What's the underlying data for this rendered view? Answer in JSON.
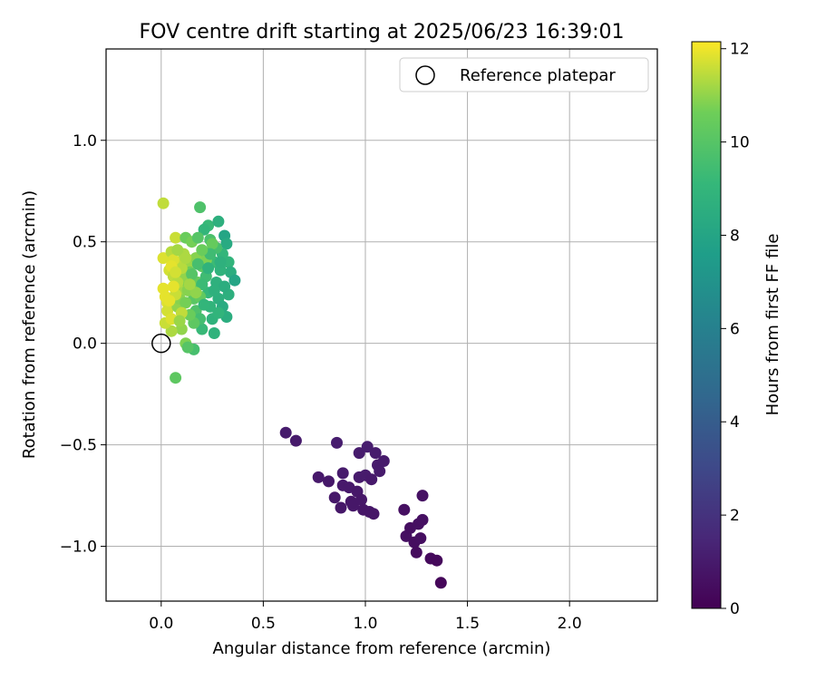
{
  "chart_data": {
    "type": "scatter",
    "title": "FOV centre drift starting at 2025/06/23 16:39:01",
    "xlabel": "Angular distance from reference (arcmin)",
    "ylabel": "Rotation from reference (arcmin)",
    "xlim": [
      -0.27,
      2.43
    ],
    "ylim": [
      -1.27,
      1.45
    ],
    "x_ticks": [
      0.0,
      0.5,
      1.0,
      1.5,
      2.0
    ],
    "x_tick_labels": [
      "0.0",
      "0.5",
      "1.0",
      "1.5",
      "2.0"
    ],
    "y_ticks": [
      -1.0,
      -0.5,
      0.0,
      0.5,
      1.0
    ],
    "y_tick_labels": [
      "−1.0",
      "−0.5",
      "0.0",
      "0.5",
      "1.0"
    ],
    "grid": true,
    "legend": {
      "position": "top-right",
      "entries": [
        "Reference platepar"
      ]
    },
    "colorbar": {
      "label": "Hours from first FF file",
      "range": [
        0,
        12.15
      ],
      "ticks": [
        0,
        2,
        4,
        6,
        8,
        10,
        12
      ],
      "tick_labels": [
        "0",
        "2",
        "4",
        "6",
        "8",
        "10",
        "12"
      ],
      "colormap": "viridis"
    },
    "reference_point": {
      "x": 0.0,
      "y": 0.0
    },
    "series": [
      {
        "points": [
          [
            0.61,
            -0.44,
            1.05
          ],
          [
            0.66,
            -0.48,
            1.0
          ],
          [
            0.77,
            -0.66,
            0.95
          ],
          [
            0.82,
            -0.68,
            0.9
          ],
          [
            0.86,
            -0.49,
            1.1
          ],
          [
            0.85,
            -0.76,
            0.9
          ],
          [
            0.88,
            -0.81,
            0.85
          ],
          [
            0.89,
            -0.64,
            1.0
          ],
          [
            0.89,
            -0.7,
            0.95
          ],
          [
            0.92,
            -0.71,
            0.95
          ],
          [
            0.93,
            -0.78,
            0.8
          ],
          [
            0.94,
            -0.8,
            0.85
          ],
          [
            0.96,
            -0.73,
            0.9
          ],
          [
            0.97,
            -0.66,
            1.0
          ],
          [
            0.97,
            -0.54,
            1.05
          ],
          [
            0.98,
            -0.77,
            0.85
          ],
          [
            0.99,
            -0.82,
            0.8
          ],
          [
            1.0,
            -0.65,
            1.0
          ],
          [
            1.01,
            -0.51,
            1.1
          ],
          [
            1.02,
            -0.83,
            0.8
          ],
          [
            1.03,
            -0.67,
            0.95
          ],
          [
            1.04,
            -0.84,
            0.8
          ],
          [
            1.05,
            -0.54,
            1.05
          ],
          [
            1.06,
            -0.6,
            1.0
          ],
          [
            1.07,
            -0.63,
            1.0
          ],
          [
            1.09,
            -0.58,
            1.0
          ],
          [
            1.19,
            -0.82,
            0.6
          ],
          [
            1.2,
            -0.95,
            0.55
          ],
          [
            1.22,
            -0.91,
            0.5
          ],
          [
            1.24,
            -0.98,
            0.45
          ],
          [
            1.25,
            -1.03,
            0.4
          ],
          [
            1.26,
            -0.89,
            0.55
          ],
          [
            1.27,
            -0.96,
            0.5
          ],
          [
            1.28,
            -0.75,
            0.65
          ],
          [
            1.28,
            -0.87,
            0.6
          ],
          [
            1.32,
            -1.06,
            0.35
          ],
          [
            1.35,
            -1.07,
            0.3
          ],
          [
            1.37,
            -1.18,
            0.2
          ],
          [
            0.01,
            0.69,
            11.5
          ],
          [
            0.07,
            -0.17,
            10.2
          ],
          [
            0.19,
            0.67,
            9.8
          ],
          [
            0.23,
            0.58,
            9.2
          ],
          [
            0.28,
            0.6,
            8.6
          ],
          [
            0.21,
            0.56,
            9.0
          ],
          [
            0.31,
            0.53,
            8.0
          ],
          [
            0.32,
            0.49,
            8.3
          ],
          [
            0.33,
            0.4,
            8.9
          ],
          [
            0.34,
            0.35,
            8.5
          ],
          [
            0.36,
            0.31,
            8.0
          ],
          [
            0.33,
            0.24,
            8.6
          ],
          [
            0.32,
            0.13,
            8.5
          ],
          [
            0.26,
            0.05,
            8.8
          ],
          [
            0.2,
            0.07,
            9.2
          ],
          [
            0.16,
            -0.03,
            9.6
          ],
          [
            0.12,
            0.0,
            10.8
          ],
          [
            0.13,
            -0.02,
            10.0
          ],
          [
            0.1,
            0.07,
            11.0
          ],
          [
            0.05,
            0.06,
            11.3
          ],
          [
            0.02,
            0.1,
            11.6
          ],
          [
            0.03,
            0.2,
            11.8
          ],
          [
            0.02,
            0.23,
            11.9
          ],
          [
            0.01,
            0.27,
            11.9
          ],
          [
            0.01,
            0.42,
            11.8
          ],
          [
            0.05,
            0.45,
            11.4
          ],
          [
            0.07,
            0.52,
            11.6
          ],
          [
            0.12,
            0.52,
            10.5
          ],
          [
            0.15,
            0.5,
            10.7
          ],
          [
            0.18,
            0.52,
            10.0
          ],
          [
            0.24,
            0.51,
            9.7
          ],
          [
            0.04,
            0.36,
            11.7
          ],
          [
            0.06,
            0.33,
            11.5
          ],
          [
            0.03,
            0.16,
            11.7
          ],
          [
            0.05,
            0.12,
            11.8
          ],
          [
            0.08,
            0.18,
            11.0
          ],
          [
            0.09,
            0.22,
            10.9
          ],
          [
            0.1,
            0.27,
            11.2
          ],
          [
            0.12,
            0.31,
            10.8
          ],
          [
            0.13,
            0.39,
            11.1
          ],
          [
            0.11,
            0.44,
            11.3
          ],
          [
            0.09,
            0.4,
            11.5
          ],
          [
            0.14,
            0.35,
            10.6
          ],
          [
            0.15,
            0.28,
            10.3
          ],
          [
            0.16,
            0.22,
            10.1
          ],
          [
            0.17,
            0.16,
            9.8
          ],
          [
            0.19,
            0.12,
            9.5
          ],
          [
            0.18,
            0.3,
            10.4
          ],
          [
            0.2,
            0.38,
            10.2
          ],
          [
            0.21,
            0.45,
            9.9
          ],
          [
            0.22,
            0.33,
            9.4
          ],
          [
            0.23,
            0.25,
            9.1
          ],
          [
            0.24,
            0.18,
            8.9
          ],
          [
            0.25,
            0.12,
            8.8
          ],
          [
            0.26,
            0.4,
            9.3
          ],
          [
            0.27,
            0.3,
            8.7
          ],
          [
            0.28,
            0.22,
            8.6
          ],
          [
            0.29,
            0.36,
            8.8
          ],
          [
            0.3,
            0.44,
            9.0
          ],
          [
            0.3,
            0.18,
            8.4
          ],
          [
            0.31,
            0.28,
            8.5
          ],
          [
            0.27,
            0.47,
            9.6
          ],
          [
            0.25,
            0.49,
            10.4
          ],
          [
            0.22,
            0.41,
            10.8
          ],
          [
            0.19,
            0.23,
            10.3
          ],
          [
            0.17,
            0.42,
            10.9
          ],
          [
            0.16,
            0.1,
            10.2
          ],
          [
            0.14,
            0.14,
            10.5
          ],
          [
            0.12,
            0.2,
            10.7
          ],
          [
            0.11,
            0.33,
            11.0
          ],
          [
            0.08,
            0.3,
            11.4
          ],
          [
            0.07,
            0.24,
            11.6
          ],
          [
            0.06,
            0.28,
            11.9
          ],
          [
            0.04,
            0.21,
            11.9
          ],
          [
            0.06,
            0.41,
            11.8
          ],
          [
            0.08,
            0.46,
            11.2
          ],
          [
            0.1,
            0.37,
            11.4
          ],
          [
            0.13,
            0.26,
            10.9
          ],
          [
            0.15,
            0.34,
            10.0
          ],
          [
            0.18,
            0.39,
            9.6
          ],
          [
            0.2,
            0.29,
            9.3
          ],
          [
            0.21,
            0.19,
            9.0
          ],
          [
            0.23,
            0.37,
            8.8
          ],
          [
            0.24,
            0.44,
            9.4
          ],
          [
            0.26,
            0.26,
            8.7
          ],
          [
            0.28,
            0.15,
            8.9
          ],
          [
            0.29,
            0.4,
            8.7
          ],
          [
            0.2,
            0.46,
            10.5
          ],
          [
            0.17,
            0.25,
            11.0
          ],
          [
            0.14,
            0.29,
            11.2
          ],
          [
            0.12,
            0.42,
            11.3
          ],
          [
            0.1,
            0.15,
            11.5
          ],
          [
            0.09,
            0.11,
            11.1
          ],
          [
            0.05,
            0.38,
            11.9
          ],
          [
            0.07,
            0.35,
            11.7
          ]
        ]
      }
    ]
  }
}
